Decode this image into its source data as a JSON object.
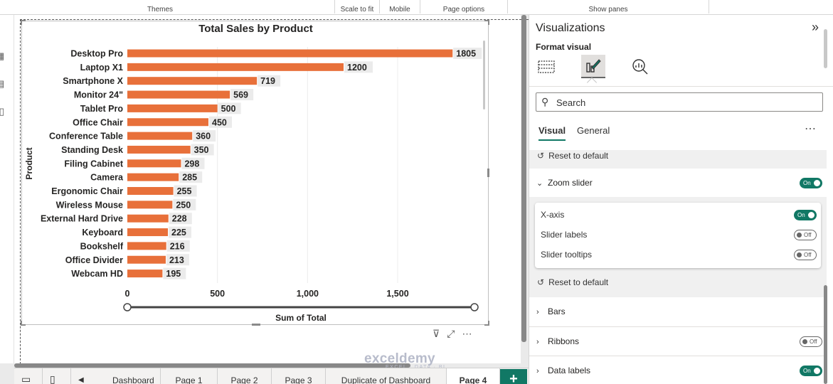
{
  "ribbon": {
    "groups": [
      {
        "label": "Themes"
      },
      {
        "label": "Scale to fit"
      },
      {
        "label": "Mobile"
      },
      {
        "label": "Page options"
      },
      {
        "label": "Show panes"
      }
    ]
  },
  "chart_data": {
    "type": "bar",
    "orientation": "horizontal",
    "title": "Total Sales by Product",
    "xlabel": "Sum of Total",
    "ylabel": "Product",
    "categories": [
      "Desktop Pro",
      "Laptop X1",
      "Smartphone X",
      "Monitor 24\"",
      "Tablet Pro",
      "Office Chair",
      "Conference Table",
      "Standing Desk",
      "Filing Cabinet",
      "Camera",
      "Ergonomic Chair",
      "Wireless Mouse",
      "External Hard Drive",
      "Keyboard",
      "Bookshelf",
      "Office Divider",
      "Webcam HD"
    ],
    "values": [
      1805,
      1200,
      719,
      569,
      500,
      450,
      360,
      350,
      298,
      285,
      255,
      250,
      228,
      225,
      216,
      213,
      195
    ],
    "data_labels": [
      "1805",
      "1200",
      "719",
      "569",
      "500",
      "450",
      "360",
      "350",
      "298",
      "285",
      "255",
      "250",
      "228",
      "225",
      "216",
      "213",
      "195"
    ],
    "xticks": [
      0,
      500,
      1000,
      1500
    ],
    "xtick_labels": [
      "0",
      "500",
      "1,000",
      "1,500"
    ],
    "xlim": [
      0,
      1950
    ],
    "grid": "vertical",
    "bar_color": "#e8703a",
    "label_bg_color": "#ebebeb",
    "zoom_slider": true
  },
  "visual_toolbar": {
    "filter_icon": "filter-icon",
    "focus_icon": "focus-mode-icon",
    "more": "⋯"
  },
  "tabs": [
    {
      "label": "Dashboard"
    },
    {
      "label": "Page 1"
    },
    {
      "label": "Page 2"
    },
    {
      "label": "Page 3"
    },
    {
      "label": "Duplicate of Dashboard"
    },
    {
      "label": "Page 4"
    }
  ],
  "add_page_label": "+",
  "watermark": {
    "main": "exceldemy",
    "sub": "EXCEL · DATA · BI"
  },
  "pane": {
    "title": "Visualizations",
    "collapse": "»",
    "subtitle": "Format visual",
    "search_placeholder": "Search",
    "tab_visual": "Visual",
    "tab_general": "General",
    "more": "⋯",
    "reset_label": "Reset to default",
    "zoom_slider": {
      "label": "Zoom slider",
      "state": "On"
    },
    "options": [
      {
        "label": "X-axis",
        "state": "On"
      },
      {
        "label": "Slider labels",
        "state": "Off"
      },
      {
        "label": "Slider tooltips",
        "state": "Off"
      }
    ],
    "sections": [
      {
        "label": "Bars",
        "toggle": ""
      },
      {
        "label": "Ribbons",
        "toggle": "Off"
      },
      {
        "label": "Data labels",
        "toggle": "On"
      }
    ],
    "accent_color": "#117865"
  }
}
